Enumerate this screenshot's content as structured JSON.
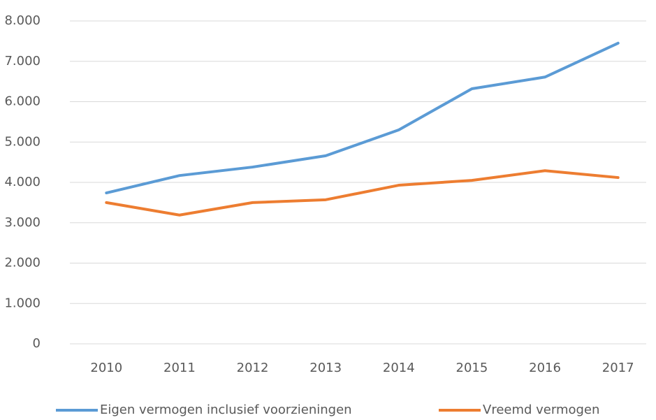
{
  "chart_data": {
    "type": "line",
    "categories": [
      "2010",
      "2011",
      "2012",
      "2013",
      "2014",
      "2015",
      "2016",
      "2017"
    ],
    "series": [
      {
        "name": "Eigen vermogen  inclusief voorzieningen",
        "color": "#5b9bd5",
        "values": [
          3740,
          4170,
          4380,
          4660,
          5300,
          6320,
          6610,
          7450
        ]
      },
      {
        "name": "Vreemd vermogen",
        "color": "#ed7d31",
        "values": [
          3500,
          3190,
          3500,
          3570,
          3930,
          4050,
          4290,
          4120
        ]
      }
    ],
    "ylim": [
      0,
      8000
    ],
    "yticks": [
      0,
      {
        "value": 1000,
        "label": "1.000"
      },
      {
        "value": 2000,
        "label": "2.000"
      },
      {
        "value": 3000,
        "label": "3.000"
      },
      {
        "value": 4000,
        "label": "4.000"
      },
      {
        "value": 5000,
        "label": "5.000"
      },
      {
        "value": 6000,
        "label": "6.000"
      },
      {
        "value": 7000,
        "label": "7.000"
      },
      {
        "value": 8000,
        "label": "8.000"
      }
    ],
    "grid": true,
    "legend": "bottom"
  }
}
